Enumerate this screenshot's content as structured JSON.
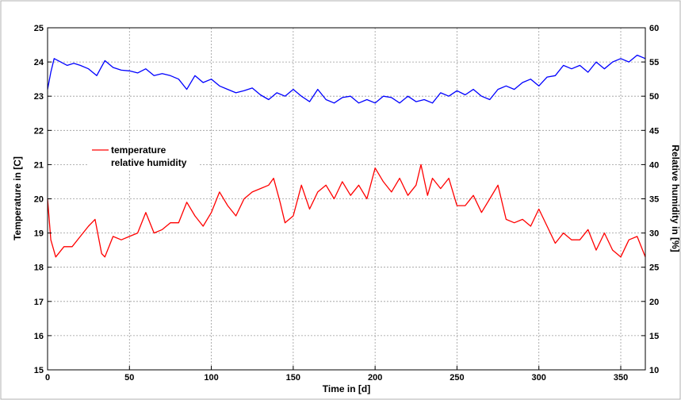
{
  "chart_data": {
    "type": "line",
    "title": "",
    "xlabel": "Time in [d]",
    "ylabel_left": "Temperature in [C]",
    "ylabel_right": "Relative humidity in [%]",
    "xlim": [
      0,
      365
    ],
    "ylim_left": [
      15,
      25
    ],
    "ylim_right": [
      10,
      60
    ],
    "xticks": [
      0,
      50,
      100,
      150,
      200,
      250,
      300,
      350
    ],
    "yticks_left": [
      15,
      16,
      17,
      18,
      19,
      20,
      21,
      22,
      23,
      24,
      25
    ],
    "yticks_right": [
      10,
      15,
      20,
      25,
      30,
      35,
      40,
      45,
      50,
      55,
      60
    ],
    "grid": true,
    "legend": "center-left",
    "colors": {
      "temperature": "#ff0000",
      "humidity": "#0000ff"
    },
    "series": [
      {
        "name": "temperature",
        "axis": "left",
        "color": "#ff0000",
        "x": [
          0,
          2,
          5,
          10,
          15,
          20,
          25,
          29,
          33,
          35,
          40,
          45,
          50,
          55,
          60,
          65,
          70,
          75,
          80,
          85,
          90,
          95,
          100,
          105,
          110,
          115,
          120,
          125,
          130,
          135,
          138,
          142,
          145,
          150,
          155,
          160,
          165,
          170,
          175,
          180,
          185,
          190,
          195,
          200,
          205,
          210,
          215,
          220,
          225,
          228,
          232,
          235,
          240,
          245,
          250,
          255,
          260,
          265,
          270,
          275,
          280,
          285,
          290,
          295,
          300,
          305,
          310,
          315,
          320,
          325,
          330,
          335,
          340,
          345,
          350,
          355,
          360,
          365
        ],
        "values": [
          20.0,
          18.8,
          18.3,
          18.6,
          18.6,
          18.9,
          19.2,
          19.4,
          18.4,
          18.3,
          18.9,
          18.8,
          18.9,
          19.0,
          19.6,
          19.0,
          19.1,
          19.3,
          19.3,
          19.9,
          19.5,
          19.2,
          19.6,
          20.2,
          19.8,
          19.5,
          20.0,
          20.2,
          20.3,
          20.4,
          20.6,
          19.9,
          19.3,
          19.5,
          20.4,
          19.7,
          20.2,
          20.4,
          20.0,
          20.5,
          20.1,
          20.4,
          20.0,
          20.9,
          20.5,
          20.2,
          20.6,
          20.1,
          20.4,
          21.0,
          20.1,
          20.6,
          20.3,
          20.6,
          19.8,
          19.8,
          20.1,
          19.6,
          20.0,
          20.4,
          19.4,
          19.3,
          19.4,
          19.2,
          19.7,
          19.2,
          18.7,
          19.0,
          18.8,
          18.8,
          19.1,
          18.5,
          19.0,
          18.5,
          18.3,
          18.8,
          18.9,
          18.3
        ]
      },
      {
        "name": "relative humidity",
        "axis": "right",
        "color": "#0000ff",
        "x": [
          0,
          2,
          4,
          8,
          12,
          16,
          20,
          25,
          30,
          35,
          40,
          45,
          50,
          55,
          60,
          65,
          70,
          75,
          80,
          85,
          90,
          95,
          100,
          105,
          110,
          115,
          120,
          125,
          130,
          135,
          140,
          145,
          150,
          155,
          160,
          165,
          170,
          175,
          180,
          185,
          190,
          195,
          200,
          205,
          210,
          215,
          220,
          225,
          230,
          235,
          240,
          245,
          250,
          255,
          260,
          265,
          270,
          275,
          280,
          285,
          290,
          295,
          300,
          305,
          310,
          315,
          320,
          325,
          330,
          335,
          340,
          345,
          350,
          355,
          360,
          365
        ],
        "values": [
          51,
          53.5,
          55.5,
          55.0,
          54.5,
          54.8,
          54.5,
          54.0,
          53.0,
          55.2,
          54.2,
          53.8,
          53.7,
          53.4,
          54.0,
          53.0,
          53.3,
          53.0,
          52.5,
          51.0,
          53.0,
          52.0,
          52.5,
          51.5,
          51.0,
          50.5,
          50.8,
          51.2,
          50.2,
          49.5,
          50.5,
          50.0,
          51.0,
          50.0,
          49.2,
          51.0,
          49.5,
          49.0,
          49.8,
          50.0,
          49.0,
          49.5,
          49.0,
          50.0,
          49.8,
          49.0,
          50.0,
          49.2,
          49.5,
          49.0,
          50.5,
          50.0,
          50.8,
          50.2,
          51.0,
          50.0,
          49.5,
          51.0,
          51.5,
          51.0,
          52.0,
          52.5,
          51.5,
          52.8,
          53.0,
          54.5,
          54.0,
          54.5,
          53.5,
          55.0,
          54.0,
          55.0,
          55.5,
          55.0,
          56.0,
          55.5
        ]
      }
    ]
  }
}
